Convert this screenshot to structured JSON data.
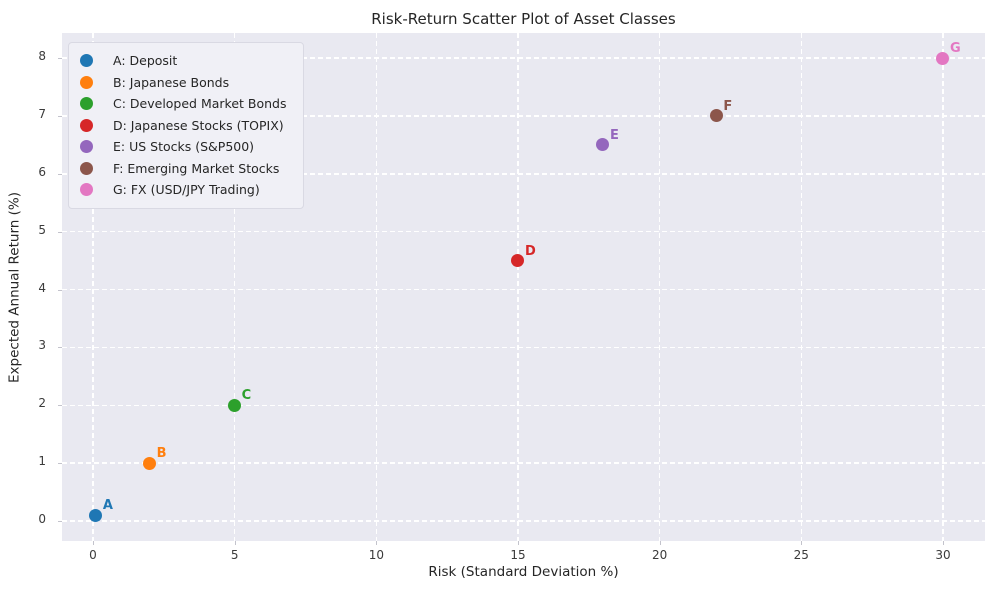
{
  "chart_data": {
    "type": "scatter",
    "title": "Risk-Return Scatter Plot of Asset Classes",
    "xlabel": "Risk (Standard Deviation %)",
    "ylabel": "Expected Annual Return (%)",
    "x_ticks": [
      0,
      5,
      10,
      15,
      20,
      25,
      30
    ],
    "y_ticks": [
      0,
      1,
      2,
      3,
      4,
      5,
      6,
      7,
      8
    ],
    "xlim": [
      -1.1,
      31.5
    ],
    "ylim": [
      -0.35,
      8.4
    ],
    "grid": true,
    "grid_style": "white dashed gridlines on light lavender background",
    "plot_background": "#e9e9f1",
    "grid_color": "#ffffff",
    "legend_position": "upper left",
    "points": [
      {
        "label": "A",
        "name": "Deposit",
        "legend_label": "A: Deposit",
        "x": 0.1,
        "y": 0.1,
        "color": "#1f77b4"
      },
      {
        "label": "B",
        "name": "Japanese Bonds",
        "legend_label": "B: Japanese Bonds",
        "x": 2,
        "y": 1,
        "color": "#ff7f0e"
      },
      {
        "label": "C",
        "name": "Developed Market Bonds",
        "legend_label": "C: Developed Market Bonds",
        "x": 5,
        "y": 2,
        "color": "#2ca02c"
      },
      {
        "label": "D",
        "name": "Japanese Stocks (TOPIX)",
        "legend_label": "D: Japanese Stocks (TOPIX)",
        "x": 15,
        "y": 4.5,
        "color": "#d62728"
      },
      {
        "label": "E",
        "name": "US Stocks (S&P500)",
        "legend_label": "E: US Stocks (S&P500)",
        "x": 18,
        "y": 6.5,
        "color": "#9467bd"
      },
      {
        "label": "F",
        "name": "Emerging Market Stocks",
        "legend_label": "F: Emerging Market Stocks",
        "x": 22,
        "y": 7,
        "color": "#8c564b"
      },
      {
        "label": "G",
        "name": "FX (USD/JPY Trading)",
        "legend_label": "G: FX (USD/JPY Trading)",
        "x": 30,
        "y": 8,
        "color": "#e377c2"
      }
    ]
  }
}
